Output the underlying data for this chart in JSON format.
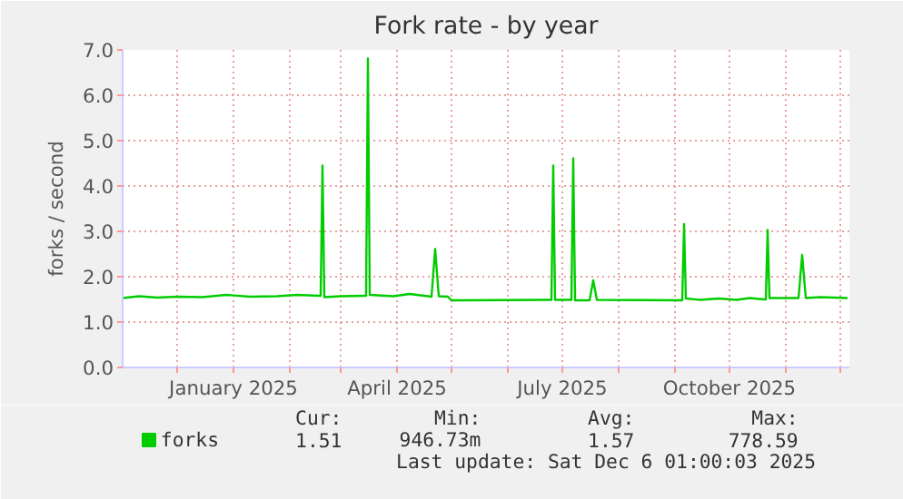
{
  "chart_data": {
    "type": "line",
    "title": "Fork rate - by year",
    "ylabel": "forks / second",
    "x": [
      "2024-11-01",
      "2024-11-10",
      "2024-11-20",
      "2024-12-01",
      "2024-12-15",
      "2024-12-28",
      "2025-01-10",
      "2025-01-25",
      "2025-02-05",
      "2025-02-17",
      "2025-02-18",
      "2025-02-19",
      "2025-02-20",
      "2025-03-01",
      "2025-03-14",
      "2025-03-15",
      "2025-03-16",
      "2025-03-17",
      "2025-03-30",
      "2025-04-08",
      "2025-04-20",
      "2025-04-22",
      "2025-04-24",
      "2025-04-29",
      "2025-05-01",
      "2025-06-24",
      "2025-06-25",
      "2025-06-26",
      "2025-06-27",
      "2025-07-05",
      "2025-07-06",
      "2025-07-07",
      "2025-07-08",
      "2025-07-16",
      "2025-07-18",
      "2025-07-20",
      "2025-09-04",
      "2025-09-05",
      "2025-09-06",
      "2025-09-07",
      "2025-09-15",
      "2025-09-25",
      "2025-10-05",
      "2025-10-12",
      "2025-10-20",
      "2025-10-21",
      "2025-10-22",
      "2025-10-23",
      "2025-11-08",
      "2025-11-10",
      "2025-11-12",
      "2025-11-20",
      "2025-12-05"
    ],
    "series": [
      {
        "name": "forks",
        "color": "#00cc00",
        "values": [
          1.53,
          1.57,
          1.54,
          1.56,
          1.55,
          1.6,
          1.56,
          1.57,
          1.6,
          1.58,
          1.58,
          4.45,
          1.55,
          1.57,
          1.58,
          1.58,
          6.81,
          1.6,
          1.57,
          1.62,
          1.56,
          2.61,
          1.57,
          1.56,
          1.48,
          1.49,
          1.49,
          4.45,
          1.49,
          1.49,
          1.49,
          4.61,
          1.48,
          1.48,
          1.92,
          1.49,
          1.48,
          1.48,
          3.16,
          1.52,
          1.49,
          1.52,
          1.49,
          1.53,
          1.5,
          1.5,
          3.03,
          1.53,
          1.53,
          2.48,
          1.53,
          1.55,
          1.53
        ]
      }
    ],
    "xlim": [
      "2024-11-01",
      "2025-12-06"
    ],
    "xticks": [
      {
        "value": "2024-12-01",
        "label": null
      },
      {
        "value": "2025-01-01",
        "label": "January 2025"
      },
      {
        "value": "2025-02-01",
        "label": null
      },
      {
        "value": "2025-03-01",
        "label": null
      },
      {
        "value": "2025-04-01",
        "label": "April 2025"
      },
      {
        "value": "2025-05-01",
        "label": null
      },
      {
        "value": "2025-06-01",
        "label": null
      },
      {
        "value": "2025-07-01",
        "label": "July 2025"
      },
      {
        "value": "2025-08-01",
        "label": null
      },
      {
        "value": "2025-09-01",
        "label": null
      },
      {
        "value": "2025-10-01",
        "label": "October 2025"
      },
      {
        "value": "2025-11-01",
        "label": null
      },
      {
        "value": "2025-12-01",
        "label": null
      }
    ],
    "ylim": [
      0,
      7
    ],
    "yticks": [
      {
        "value": 0,
        "label": "0.0"
      },
      {
        "value": 1,
        "label": "1.0"
      },
      {
        "value": 2,
        "label": "2.0"
      },
      {
        "value": 3,
        "label": "3.0"
      },
      {
        "value": 4,
        "label": "4.0"
      },
      {
        "value": 5,
        "label": "5.0"
      },
      {
        "value": 6,
        "label": "6.0"
      },
      {
        "value": 7,
        "label": "7.0"
      }
    ],
    "grid": true,
    "legend": "bottom",
    "marker": "none",
    "line_style": "solid",
    "annotations": [
      "Cur:",
      "Min:",
      "Avg:",
      "Max:",
      "1.51",
      "946.73m",
      "1.57",
      "778.59",
      "Last update: Sat Dec  6 01:00:03 2025"
    ]
  }
}
